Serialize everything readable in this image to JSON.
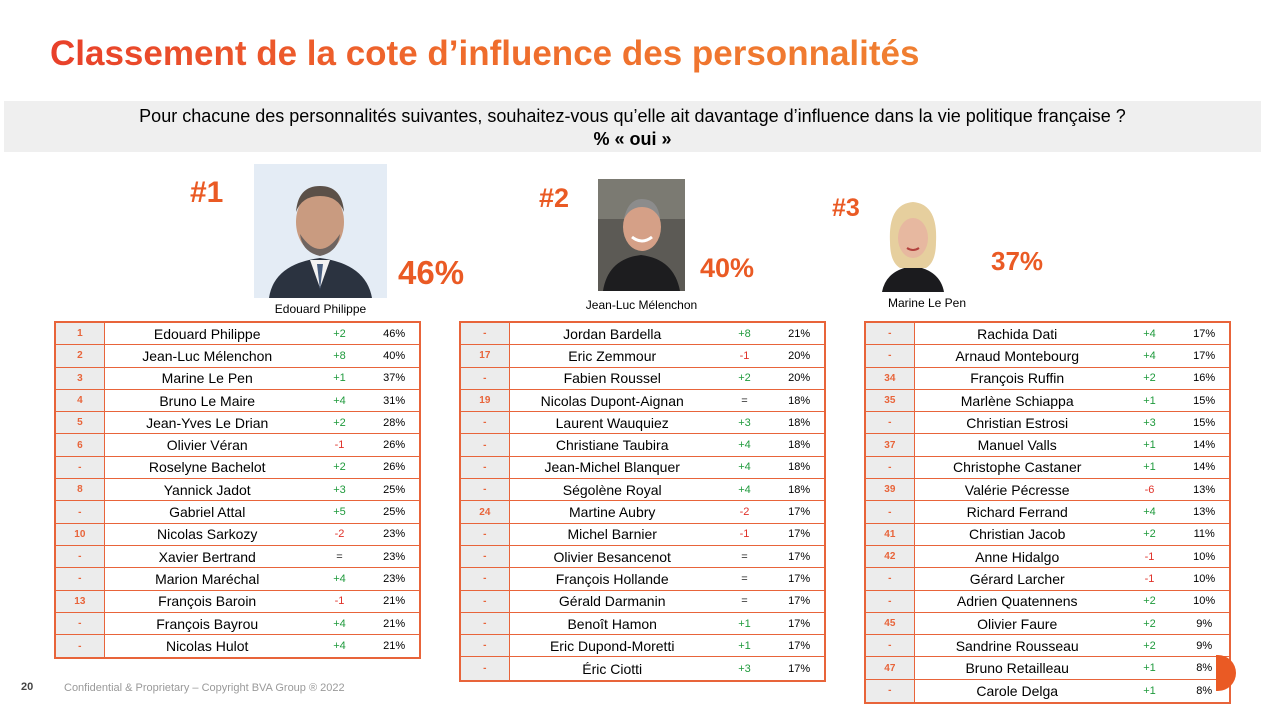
{
  "title": "Classement de la cote d’influence des personnalités",
  "question": "Pour chacune des personnalités suivantes, souhaitez-vous qu’elle ait davantage d’influence dans la vie politique française ?",
  "unit": "% « oui »",
  "podium": [
    {
      "rank": "#1",
      "name": "Edouard Philippe",
      "pct": "46%"
    },
    {
      "rank": "#2",
      "name": "Jean-Luc Mélenchon",
      "pct": "40%"
    },
    {
      "rank": "#3",
      "name": "Marine Le Pen",
      "pct": "37%"
    }
  ],
  "tables": [
    [
      {
        "rank": "1",
        "name": "Edouard Philippe",
        "evo": "+2",
        "val": "46%"
      },
      {
        "rank": "2",
        "name": "Jean-Luc Mélenchon",
        "evo": "+8",
        "val": "40%"
      },
      {
        "rank": "3",
        "name": "Marine Le Pen",
        "evo": "+1",
        "val": "37%"
      },
      {
        "rank": "4",
        "name": "Bruno Le Maire",
        "evo": "+4",
        "val": "31%"
      },
      {
        "rank": "5",
        "name": "Jean-Yves Le Drian",
        "evo": "+2",
        "val": "28%"
      },
      {
        "rank": "6",
        "name": "Olivier Véran",
        "evo": "-1",
        "val": "26%"
      },
      {
        "rank": "-",
        "name": "Roselyne Bachelot",
        "evo": "+2",
        "val": "26%"
      },
      {
        "rank": "8",
        "name": "Yannick Jadot",
        "evo": "+3",
        "val": "25%"
      },
      {
        "rank": "-",
        "name": "Gabriel Attal",
        "evo": "+5",
        "val": "25%"
      },
      {
        "rank": "10",
        "name": "Nicolas Sarkozy",
        "evo": "-2",
        "val": "23%"
      },
      {
        "rank": "-",
        "name": "Xavier Bertrand",
        "evo": "=",
        "val": "23%"
      },
      {
        "rank": "-",
        "name": "Marion Maréchal",
        "evo": "+4",
        "val": "23%"
      },
      {
        "rank": "13",
        "name": "François Baroin",
        "evo": "-1",
        "val": "21%"
      },
      {
        "rank": "-",
        "name": "François Bayrou",
        "evo": "+4",
        "val": "21%"
      },
      {
        "rank": "-",
        "name": "Nicolas Hulot",
        "evo": "+4",
        "val": "21%"
      }
    ],
    [
      {
        "rank": "-",
        "name": "Jordan Bardella",
        "evo": "+8",
        "val": "21%"
      },
      {
        "rank": "17",
        "name": "Eric Zemmour",
        "evo": "-1",
        "val": "20%"
      },
      {
        "rank": "-",
        "name": "Fabien Roussel",
        "evo": "+2",
        "val": "20%"
      },
      {
        "rank": "19",
        "name": "Nicolas Dupont-Aignan",
        "evo": "=",
        "val": "18%"
      },
      {
        "rank": "-",
        "name": "Laurent Wauquiez",
        "evo": "+3",
        "val": "18%"
      },
      {
        "rank": "-",
        "name": "Christiane Taubira",
        "evo": "+4",
        "val": "18%"
      },
      {
        "rank": "-",
        "name": "Jean-Michel Blanquer",
        "evo": "+4",
        "val": "18%"
      },
      {
        "rank": "-",
        "name": "Ségolène Royal",
        "evo": "+4",
        "val": "18%"
      },
      {
        "rank": "24",
        "name": "Martine Aubry",
        "evo": "-2",
        "val": "17%"
      },
      {
        "rank": "-",
        "name": "Michel Barnier",
        "evo": "-1",
        "val": "17%"
      },
      {
        "rank": "-",
        "name": "Olivier Besancenot",
        "evo": "=",
        "val": "17%"
      },
      {
        "rank": "-",
        "name": "François Hollande",
        "evo": "=",
        "val": "17%"
      },
      {
        "rank": "-",
        "name": "Gérald Darmanin",
        "evo": "=",
        "val": "17%"
      },
      {
        "rank": "-",
        "name": "Benoît Hamon",
        "evo": "+1",
        "val": "17%"
      },
      {
        "rank": "-",
        "name": "Eric Dupond-Moretti",
        "evo": "+1",
        "val": "17%"
      },
      {
        "rank": "-",
        "name": "Éric Ciotti",
        "evo": "+3",
        "val": "17%"
      }
    ],
    [
      {
        "rank": "-",
        "name": "Rachida Dati",
        "evo": "+4",
        "val": "17%"
      },
      {
        "rank": "-",
        "name": "Arnaud Montebourg",
        "evo": "+4",
        "val": "17%"
      },
      {
        "rank": "34",
        "name": "François Ruffin",
        "evo": "+2",
        "val": "16%"
      },
      {
        "rank": "35",
        "name": "Marlène Schiappa",
        "evo": "+1",
        "val": "15%"
      },
      {
        "rank": "-",
        "name": "Christian Estrosi",
        "evo": "+3",
        "val": "15%"
      },
      {
        "rank": "37",
        "name": "Manuel Valls",
        "evo": "+1",
        "val": "14%"
      },
      {
        "rank": "-",
        "name": "Christophe Castaner",
        "evo": "+1",
        "val": "14%"
      },
      {
        "rank": "39",
        "name": "Valérie Pécresse",
        "evo": "-6",
        "val": "13%"
      },
      {
        "rank": "-",
        "name": "Richard Ferrand",
        "evo": "+4",
        "val": "13%"
      },
      {
        "rank": "41",
        "name": "Christian Jacob",
        "evo": "+2",
        "val": "11%"
      },
      {
        "rank": "42",
        "name": "Anne Hidalgo",
        "evo": "-1",
        "val": "10%"
      },
      {
        "rank": "-",
        "name": "Gérard Larcher",
        "evo": "-1",
        "val": "10%"
      },
      {
        "rank": "-",
        "name": "Adrien Quatennens",
        "evo": "+2",
        "val": "10%"
      },
      {
        "rank": "45",
        "name": "Olivier Faure",
        "evo": "+2",
        "val": "9%"
      },
      {
        "rank": "-",
        "name": "Sandrine Rousseau",
        "evo": "+2",
        "val": "9%"
      },
      {
        "rank": "47",
        "name": "Bruno Retailleau",
        "evo": "+1",
        "val": "8%"
      },
      {
        "rank": "-",
        "name": "Carole Delga",
        "evo": "+1",
        "val": "8%"
      }
    ]
  ],
  "footer": {
    "page": "20",
    "text": "Confidential & Proprietary – Copyright BVA Group ®  2022"
  },
  "colors": {
    "accent": "#ea5a24",
    "positive": "#1f9a3c",
    "negative": "#e0322a",
    "border": "#e8643a"
  }
}
